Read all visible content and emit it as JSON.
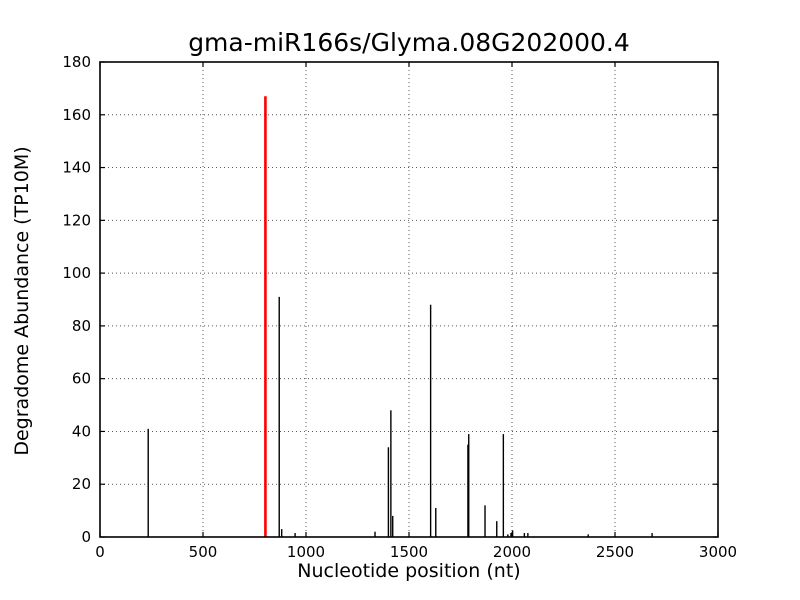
{
  "figure": {
    "background": "#ffffff"
  },
  "chart_data": {
    "type": "stem",
    "title": "gma-miR166s/Glyma.08G202000.4",
    "xlabel": "Nucleotide position (nt)",
    "ylabel": "Degradome Abundance (TP10M)",
    "xlim": [
      0,
      3000
    ],
    "ylim": [
      0,
      180
    ],
    "xticks": [
      0,
      500,
      1000,
      1500,
      2000,
      2500,
      3000
    ],
    "yticks": [
      0,
      20,
      40,
      60,
      80,
      100,
      120,
      140,
      160,
      180
    ],
    "grid": "dotted",
    "legend": "none",
    "colors": {
      "default_stem": "#000000",
      "highlight_stem": "#ff0000",
      "axis": "#000000",
      "grid": "#555555"
    },
    "points": [
      {
        "x": 234,
        "y": 41,
        "color": "default"
      },
      {
        "x": 803,
        "y": 167,
        "color": "highlight"
      },
      {
        "x": 870,
        "y": 91,
        "color": "default"
      },
      {
        "x": 882,
        "y": 3,
        "color": "default"
      },
      {
        "x": 947,
        "y": 1.5,
        "color": "default"
      },
      {
        "x": 1335,
        "y": 2,
        "color": "default"
      },
      {
        "x": 1400,
        "y": 34,
        "color": "default"
      },
      {
        "x": 1412,
        "y": 48,
        "color": "default"
      },
      {
        "x": 1421,
        "y": 8,
        "color": "default"
      },
      {
        "x": 1605,
        "y": 88,
        "color": "default"
      },
      {
        "x": 1630,
        "y": 11,
        "color": "default"
      },
      {
        "x": 1786,
        "y": 35,
        "color": "default"
      },
      {
        "x": 1790,
        "y": 39,
        "color": "default"
      },
      {
        "x": 1869,
        "y": 12,
        "color": "default"
      },
      {
        "x": 1926,
        "y": 6,
        "color": "default"
      },
      {
        "x": 1958,
        "y": 39,
        "color": "default"
      },
      {
        "x": 1980,
        "y": 1,
        "color": "default"
      },
      {
        "x": 1995,
        "y": 1.5,
        "color": "default"
      },
      {
        "x": 2003,
        "y": 2.5,
        "color": "default"
      },
      {
        "x": 2060,
        "y": 1.5,
        "color": "default"
      },
      {
        "x": 2077,
        "y": 1.5,
        "color": "default"
      },
      {
        "x": 2370,
        "y": 1,
        "color": "default"
      },
      {
        "x": 2680,
        "y": 1.5,
        "color": "default"
      }
    ]
  }
}
